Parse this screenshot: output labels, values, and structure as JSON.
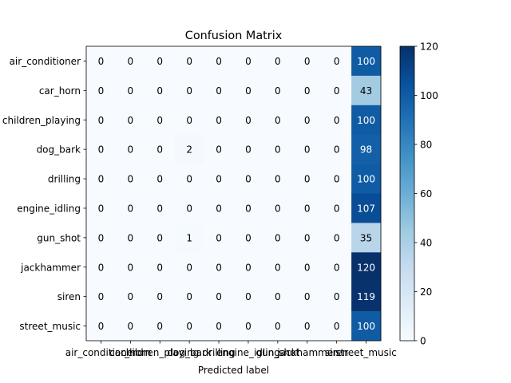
{
  "chart_data": {
    "type": "heatmap",
    "title": "Confusion Matrix",
    "xlabel": "Predicted label",
    "ylabel": "",
    "x_categories": [
      "air_conditioner",
      "car_horn",
      "children_playing",
      "dog_bark",
      "drilling",
      "engine_idling",
      "gun_shot",
      "jackhammer",
      "siren",
      "street_music"
    ],
    "y_categories": [
      "air_conditioner",
      "car_horn",
      "children_playing",
      "dog_bark",
      "drilling",
      "engine_idling",
      "gun_shot",
      "jackhammer",
      "siren",
      "street_music"
    ],
    "values": [
      [
        0,
        0,
        0,
        0,
        0,
        0,
        0,
        0,
        0,
        100
      ],
      [
        0,
        0,
        0,
        0,
        0,
        0,
        0,
        0,
        0,
        43
      ],
      [
        0,
        0,
        0,
        0,
        0,
        0,
        0,
        0,
        0,
        100
      ],
      [
        0,
        0,
        0,
        2,
        0,
        0,
        0,
        0,
        0,
        98
      ],
      [
        0,
        0,
        0,
        0,
        0,
        0,
        0,
        0,
        0,
        100
      ],
      [
        0,
        0,
        0,
        0,
        0,
        0,
        0,
        0,
        0,
        107
      ],
      [
        0,
        0,
        0,
        1,
        0,
        0,
        0,
        0,
        0,
        35
      ],
      [
        0,
        0,
        0,
        0,
        0,
        0,
        0,
        0,
        0,
        120
      ],
      [
        0,
        0,
        0,
        0,
        0,
        0,
        0,
        0,
        0,
        119
      ],
      [
        0,
        0,
        0,
        0,
        0,
        0,
        0,
        0,
        0,
        100
      ]
    ],
    "colormap": "Blues",
    "colorbar": {
      "range": [
        0,
        120
      ],
      "ticks": [
        0,
        20,
        40,
        60,
        80,
        100,
        120
      ]
    },
    "grid": false
  }
}
